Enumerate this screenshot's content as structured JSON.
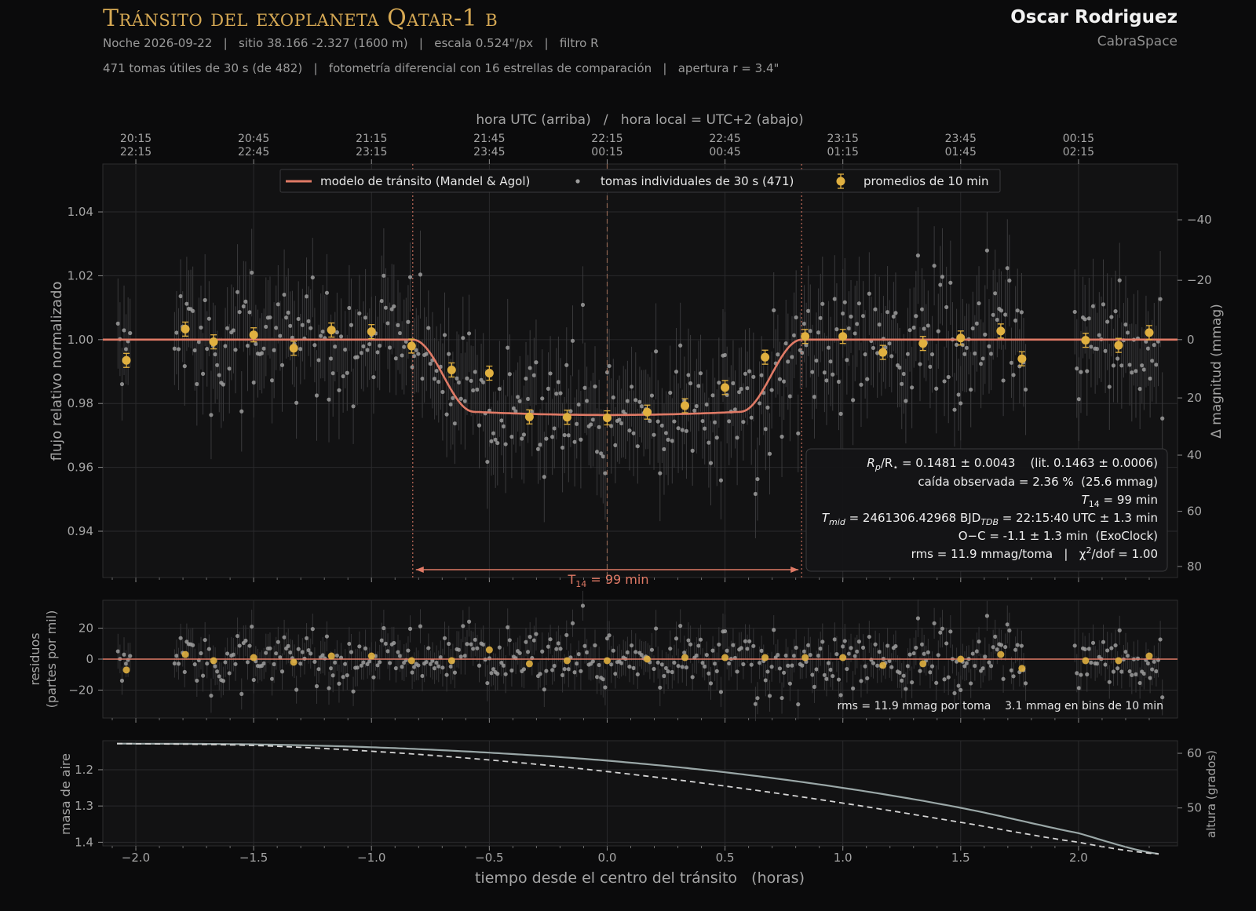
{
  "header": {
    "title": "Tránsito del exoplaneta Qatar-1 b",
    "line1": "Noche 2026-09-22   |   sitio 38.166 -2.327 (1600 m)   |   escala 0.524\"/px   |   filtro R",
    "line2": "471 tomas útiles de 30 s (de 482)   |   fotometría diferencial con 16 estrellas de comparación   |   apertura r = 3.4\"",
    "author": "Oscar Rodriguez",
    "org": "CabraSpace"
  },
  "colors": {
    "background": "#0b0b0c",
    "panel": "#121213",
    "model": "#e07a66",
    "points": "#9c9c9c",
    "binned": "#e0b040",
    "title": "#d6a954",
    "airmass": "#9aa7a7"
  },
  "top_axis": {
    "label": "hora UTC (arriba)   /   hora local = UTC+2 (abajo)",
    "ticks": [
      {
        "x": -2.0,
        "utc": "20:15",
        "local": "22:15"
      },
      {
        "x": -1.5,
        "utc": "20:45",
        "local": "22:45"
      },
      {
        "x": -1.0,
        "utc": "21:15",
        "local": "23:15"
      },
      {
        "x": -0.5,
        "utc": "21:45",
        "local": "23:45"
      },
      {
        "x": 0.0,
        "utc": "22:15",
        "local": "00:15"
      },
      {
        "x": 0.5,
        "utc": "22:45",
        "local": "00:45"
      },
      {
        "x": 1.0,
        "utc": "23:15",
        "local": "01:15"
      },
      {
        "x": 1.5,
        "utc": "23:45",
        "local": "01:45"
      },
      {
        "x": 2.0,
        "utc": "00:15",
        "local": "02:15"
      }
    ]
  },
  "legend": {
    "model": "modelo de tránsito (Mandel & Agol)",
    "points": "tomas individuales de 30 s (471)",
    "binned": "promedios de 10 min"
  },
  "stats_box": {
    "line1_a": "R",
    "line1_b": "p",
    "line1_c": "/R",
    "line1_d": "⋆",
    "line1_e": " = 0.1481 ± 0.0043    (lit. 0.1463 ± 0.0006)",
    "line2": "caída observada = 2.36 %  (25.6 mmag)",
    "line3_a": "T",
    "line3_b": "14",
    "line3_c": " = 99 min",
    "line4_a": "T",
    "line4_b": "mid",
    "line4_c": " = 2461306.42968 BJD",
    "line4_d": "TDB",
    "line4_e": " = 22:15:40 UTC ± 1.3 min",
    "line5": "O−C = -1.1 ± 1.3 min  (ExoClock)",
    "line6_a": "rms = 11.9 mmag/toma   |   χ",
    "line6_b": "2",
    "line6_c": "/dof = 1.00"
  },
  "duration_label": {
    "a": "T",
    "b": "14",
    "c": " = 99 min"
  },
  "residual_note": "rms = 11.9 mmag por toma    3.1 mmag en bins de 10 min",
  "chart_data": [
    {
      "type": "scatter",
      "name": "light-curve",
      "xlabel": "tiempo desde el centro del tránsito   (horas)",
      "ylabel": "flujo relativo normalizado",
      "ylabel_right": "Δ magnitud (mmag)",
      "xlim": [
        -2.14,
        2.42
      ],
      "ylim": [
        0.9255,
        1.055
      ],
      "yticks": [
        "0.94",
        "0.96",
        "0.98",
        "1.00",
        "1.02",
        "1.04"
      ],
      "yticks_right": [
        "−40",
        "−20",
        "0",
        "20",
        "40",
        "60",
        "80"
      ],
      "xticks": [
        "−2.0",
        "−1.5",
        "−1.0",
        "−0.5",
        "0.0",
        "0.5",
        "1.0",
        "1.5",
        "2.0"
      ],
      "ingress": -0.825,
      "egress": 0.825,
      "t_mid": 0.0,
      "depth": 0.0236,
      "transit_model_baseline": 1.0,
      "binned_10min": [
        {
          "x": -2.04,
          "y": 0.9935,
          "e": 0.0022
        },
        {
          "x": -1.79,
          "y": 1.0033,
          "e": 0.0022
        },
        {
          "x": -1.67,
          "y": 0.9993,
          "e": 0.0022
        },
        {
          "x": -1.5,
          "y": 1.0015,
          "e": 0.0022
        },
        {
          "x": -1.33,
          "y": 0.9973,
          "e": 0.0022
        },
        {
          "x": -1.17,
          "y": 1.003,
          "e": 0.0022
        },
        {
          "x": -1.0,
          "y": 1.0025,
          "e": 0.0022
        },
        {
          "x": -0.83,
          "y": 0.998,
          "e": 0.0022
        },
        {
          "x": -0.66,
          "y": 0.9905,
          "e": 0.0022
        },
        {
          "x": -0.5,
          "y": 0.9895,
          "e": 0.0022
        },
        {
          "x": -0.33,
          "y": 0.9758,
          "e": 0.0022
        },
        {
          "x": -0.17,
          "y": 0.9757,
          "e": 0.0022
        },
        {
          "x": 0.0,
          "y": 0.9755,
          "e": 0.0022
        },
        {
          "x": 0.17,
          "y": 0.9773,
          "e": 0.0022
        },
        {
          "x": 0.33,
          "y": 0.9793,
          "e": 0.0022
        },
        {
          "x": 0.5,
          "y": 0.985,
          "e": 0.0022
        },
        {
          "x": 0.67,
          "y": 0.9945,
          "e": 0.0022
        },
        {
          "x": 0.84,
          "y": 1.001,
          "e": 0.0022
        },
        {
          "x": 1.0,
          "y": 1.001,
          "e": 0.0022
        },
        {
          "x": 1.17,
          "y": 0.996,
          "e": 0.0022
        },
        {
          "x": 1.34,
          "y": 0.9988,
          "e": 0.0022
        },
        {
          "x": 1.5,
          "y": 1.0005,
          "e": 0.0022
        },
        {
          "x": 1.67,
          "y": 1.0027,
          "e": 0.0022
        },
        {
          "x": 1.76,
          "y": 0.994,
          "e": 0.0022
        },
        {
          "x": 2.03,
          "y": 0.9998,
          "e": 0.0022
        },
        {
          "x": 2.17,
          "y": 0.9982,
          "e": 0.0022
        },
        {
          "x": 2.3,
          "y": 1.0022,
          "e": 0.0022
        }
      ],
      "individual_points_count": 471,
      "point_scatter_sigma": 0.0119
    },
    {
      "type": "scatter",
      "name": "residuals",
      "ylabel": "residuos\n(partes por mil)",
      "ylim": [
        -38,
        38
      ],
      "yticks": [
        "−20",
        "0",
        "20"
      ],
      "binned_10min": [
        -7,
        3,
        -1,
        1,
        -2,
        2,
        2,
        -1,
        -1,
        6,
        -3,
        -1,
        -1,
        0,
        1,
        1,
        1,
        1,
        1,
        -4,
        -3,
        0,
        3,
        -6,
        -1,
        -1,
        2
      ]
    },
    {
      "type": "line",
      "name": "airmass",
      "ylabel": "masa de aire",
      "ylabel_right": "altura (grados)",
      "ylim": [
        1.41,
        1.12
      ],
      "yticks": [
        "1.2",
        "1.3",
        "1.4"
      ],
      "yticks_right": [
        "60",
        "50"
      ],
      "series": [
        {
          "x": [
            -2.08,
            -1.5,
            -1.0,
            -0.5,
            0.0,
            0.5,
            1.0,
            1.5,
            2.0,
            2.35
          ],
          "values": [
            1.128,
            1.13,
            1.138,
            1.153,
            1.175,
            1.207,
            1.25,
            1.305,
            1.375,
            1.433
          ]
        },
        {
          "x": [
            -2.08,
            -1.5,
            -1.0,
            -0.5,
            0.0,
            0.5,
            1.0,
            1.5,
            2.0,
            2.35
          ],
          "values": [
            1.128,
            1.133,
            1.149,
            1.173,
            1.205,
            1.245,
            1.292,
            1.345,
            1.4,
            1.433
          ]
        }
      ]
    }
  ]
}
